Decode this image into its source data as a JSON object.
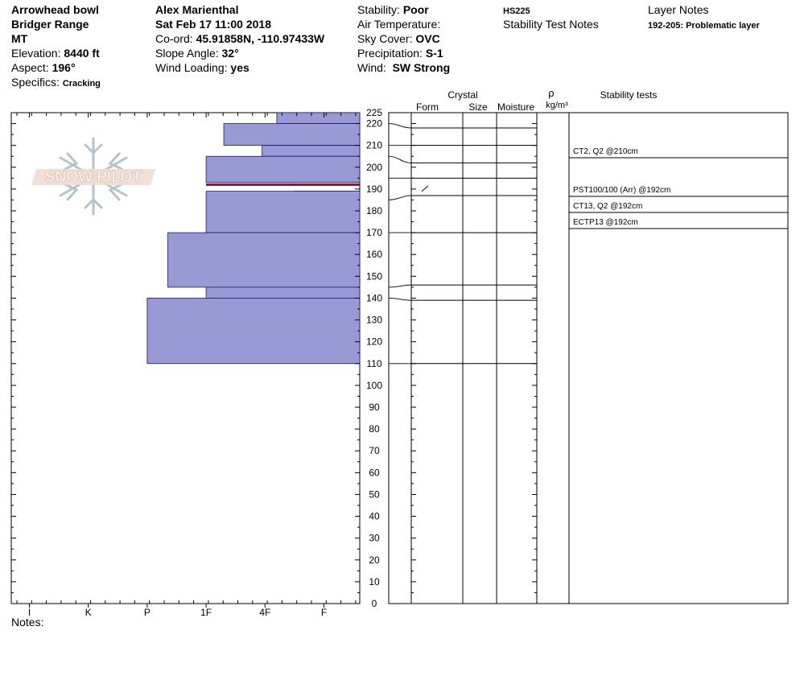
{
  "header": {
    "col1": {
      "location": "Arrowhead bowl",
      "range": "Bridger Range",
      "state": "MT",
      "elevation_label": "Elevation:",
      "elevation_value": "8440 ft",
      "aspect_label": "Aspect:",
      "aspect_value": "196°",
      "specifics_label": "Specifics:",
      "specifics_value": "Cracking"
    },
    "col2": {
      "observer": "Alex Marienthal",
      "datetime": "Sat Feb 17 11:00 2018",
      "coord_label": "Co-ord:",
      "coord_value": "45.91858N, -110.97433W",
      "slope_label": "Slope Angle:",
      "slope_value": "32°",
      "wind_loading_label": "Wind Loading:",
      "wind_loading_value": "yes"
    },
    "col3": {
      "stability_label": "Stability:",
      "stability_value": "Poor",
      "air_temp_label": "Air Temperature:",
      "air_temp_value": "",
      "sky_label": "Sky Cover:",
      "sky_value": "OVC",
      "precip_label": "Precipitation:",
      "precip_value": "S-1",
      "wind_label": "Wind:",
      "wind_value": "SW Strong"
    },
    "col4": {
      "hs": "HS225",
      "stability_notes_label": "Stability Test Notes"
    },
    "col5": {
      "layer_notes_label": "Layer Notes",
      "layer_note": "192-205: Problematic layer"
    }
  },
  "logo_text": "SNOW PILOT",
  "notes_label": "Notes:",
  "column_headers": {
    "crystal": "Crystal",
    "form": "Form",
    "size": "Size",
    "moisture": "Moisture",
    "rho": "ρ",
    "density_unit": "kg/m³",
    "stability_tests": "Stability tests"
  },
  "colors": {
    "hardness_fill": "#9999d6",
    "weak_layer": "#8b1a2b"
  },
  "chart_data": {
    "type": "bar",
    "title": "",
    "xlabel": "",
    "ylabel": "",
    "hardness_scale": [
      "I",
      "K",
      "P",
      "1F",
      "4F",
      "F"
    ],
    "ylim": [
      0,
      225
    ],
    "y_ticks": [
      0,
      10,
      20,
      30,
      40,
      50,
      60,
      70,
      80,
      90,
      100,
      110,
      120,
      130,
      140,
      150,
      160,
      170,
      180,
      190,
      200,
      210,
      220,
      225
    ],
    "layers": [
      {
        "top": 225,
        "bottom": 220,
        "hardness_index": 5.2
      },
      {
        "top": 220,
        "bottom": 210,
        "hardness_index": 4.3
      },
      {
        "top": 210,
        "bottom": 205,
        "hardness_index": 4.95
      },
      {
        "top": 205,
        "bottom": 193,
        "hardness_index": 4.0
      },
      {
        "top": 189,
        "bottom": 182,
        "hardness_index": 5.5
      },
      {
        "top": 189,
        "bottom": 170,
        "hardness_index": 4.0
      },
      {
        "top": 170,
        "bottom": 145,
        "hardness_index": 3.35
      },
      {
        "top": 145,
        "bottom": 140,
        "hardness_index": 4.0
      },
      {
        "top": 140,
        "bottom": 110,
        "hardness_index": 3.0
      }
    ],
    "weak_layer_depth": 192,
    "layer_boundaries": [
      225,
      218,
      210,
      202,
      195,
      187,
      170,
      146,
      139,
      110
    ],
    "grain_symbol_layer": 190,
    "stability_tests": [
      {
        "text": "CT2, Q2 @210cm",
        "depth": 210
      },
      {
        "text": "PST100/100 (Arr) @192cm",
        "depth": 192
      },
      {
        "text": "CT13, Q2 @192cm",
        "depth": 192
      },
      {
        "text": "ECTP13 @192cm",
        "depth": 192
      }
    ]
  }
}
